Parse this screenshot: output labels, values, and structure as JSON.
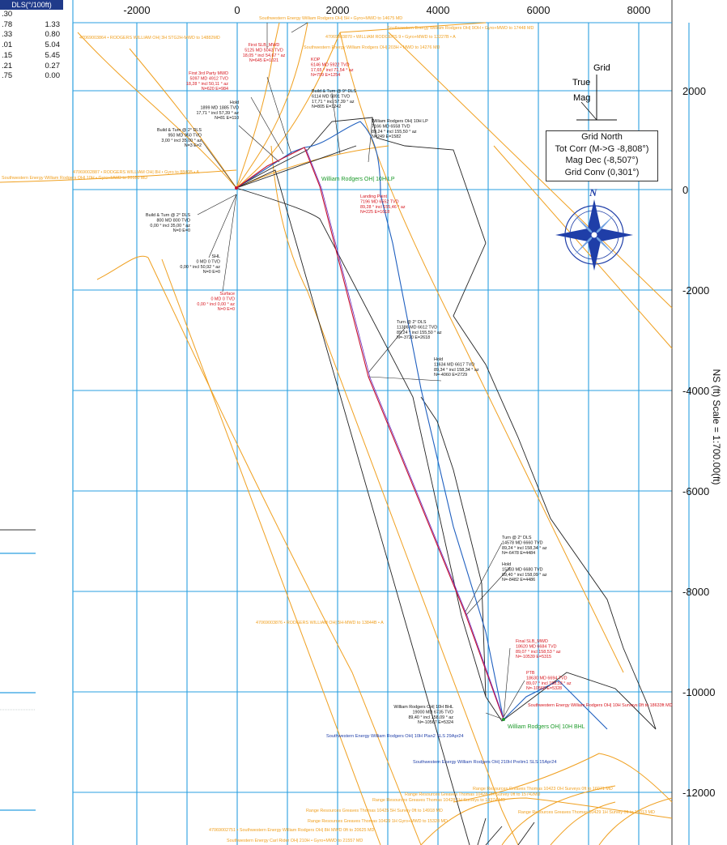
{
  "dls_table": {
    "header": "DLS(°/100ft)",
    "rows": [
      {
        "a": ".30",
        "b": ""
      },
      {
        "a": ".78",
        "b": "1.33"
      },
      {
        "a": ".33",
        "b": "0.80"
      },
      {
        "a": ".01",
        "b": "5.04"
      },
      {
        "a": ".15",
        "b": "5.45"
      },
      {
        "a": ".21",
        "b": "0.27"
      },
      {
        "a": ".75",
        "b": "0.00"
      }
    ]
  },
  "axes": {
    "x_ticks": [
      "-2000",
      "0",
      "2000",
      "4000",
      "6000",
      "8000"
    ],
    "y_ticks": [
      "2000",
      "0",
      "-2000",
      "-4000",
      "-6000",
      "-8000",
      "-10000",
      "-12000"
    ],
    "scale_label": "NS (ft) Scale = 1:700.00(ft)"
  },
  "north_diagram": {
    "grid": "Grid",
    "true": "True",
    "mag": "Mag"
  },
  "grid_north_box": {
    "title": "Grid North",
    "tot_corr": "Tot Corr (M->G -8,808°)",
    "mag_dec": "Mag Dec (-8,507°)",
    "grid_conv": "Grid Conv (0,301°)"
  },
  "compass": {
    "letter": "N",
    "color": "#1f3ea8"
  },
  "colors": {
    "grid": "#2a9fe0",
    "well_plan": "#c8102e",
    "survey_blue": "#1f5fbf",
    "offset_orange": "#f0a020",
    "offset_black": "#222222",
    "compass_blue": "#1f3ea8"
  },
  "annotations": [
    {
      "id": "first-slb",
      "lines": [
        "First SLB_MWD",
        "5125 MD 5043 TVD",
        "18,05 ° incl 54,67 ° az",
        "N=645 E=1021"
      ]
    },
    {
      "id": "kop",
      "lines": [
        "KOP",
        "6146 MD 5922 TVD",
        "17,65 ° incl 71,54 ° az",
        "N=799 E=1254"
      ]
    },
    {
      "id": "first-3rd-party",
      "lines": [
        "First 3rd Party MWD",
        "5097 MD 4912 TVD",
        "18,28 ° incl 50,11 ° az",
        "N=620 E=984"
      ]
    },
    {
      "id": "hold-1",
      "lines": [
        "Hold",
        "1899 MD 1885 TVD",
        "17,71 ° incl 57,39 ° az",
        "N=81 E=110"
      ]
    },
    {
      "id": "build-turn-9",
      "lines": [
        "Build & Turn @ 9° DLS",
        "6114 MD 5891 TVD",
        "17,71 ° incl 57,39 ° az",
        "N=805 E=1242"
      ]
    },
    {
      "id": "build-turn-2-950",
      "lines": [
        "Build & Turn @ 2° DLS",
        "950 MD 950 TVD",
        "3,00 ° incl 35,00 ° az",
        "N=3 E=2"
      ]
    },
    {
      "id": "william-lp",
      "lines": [
        "William Rodgers OH| 10H LP",
        "7166 MD 6558 TVD",
        "89,24 ° incl 155,50 ° az",
        "N=249 E=1582"
      ]
    },
    {
      "id": "landing-point",
      "lines": [
        "Landing Point",
        "7196 MD 6552 TVD",
        "89,28 ° incl 155,46 ° az",
        "N=225 E=1618"
      ]
    },
    {
      "id": "build-turn-2-800",
      "lines": [
        "Build & Turn @ 2° DLS",
        "800 MD 800 TVD",
        "0,00 ° incl 35,00 ° az",
        "N=0 E=0"
      ]
    },
    {
      "id": "shl",
      "lines": [
        "SHL",
        "0 MD 0 TVD",
        "0,00 ° incl 50,92 ° az",
        "N=0 E=0"
      ]
    },
    {
      "id": "surface",
      "lines": [
        "Surface",
        "0 MD 0 TVD",
        "0,00 ° incl 0,00 ° az",
        "N=0 E=0"
      ]
    },
    {
      "id": "turn-2-11386",
      "lines": [
        "Turn @ 2° DLS",
        "11386 MD 6612 TVD",
        "89,24 ° incl 155,50 ° az",
        "N=-3720 E=2618"
      ]
    },
    {
      "id": "hold-11634",
      "lines": [
        "Hold",
        "11634 MD 6617 TVD",
        "89,34 ° incl 158,34 ° az",
        "N=-4060 E=2729"
      ]
    },
    {
      "id": "turn-2-14578",
      "lines": [
        "Turn @ 2° DLS",
        "14578 MD 6660 TVD",
        "89,24 ° incl 158,34 ° az",
        "N=-6478 E=4484"
      ]
    },
    {
      "id": "hold-15383",
      "lines": [
        "Hold",
        "15383 MD 6680 TVD",
        "89,40 ° incl 158,09 ° az",
        "N=-8482 E=4486"
      ]
    },
    {
      "id": "final-slb",
      "lines": [
        "Final SLB_MWD",
        "18620 MD 6684 TVD",
        "89,07 ° incl 158,53 ° az",
        "N=-10539 E=5315"
      ]
    },
    {
      "id": "ptb",
      "lines": [
        "PTB",
        "18630 MD 6694 TVD",
        "89,07 ° incl 158,53 ° az",
        "N=-10568 E=5328"
      ]
    },
    {
      "id": "william-bhl",
      "lines": [
        "William Rodgers OH| 10H BHL",
        "19000 MD 6735 TVD",
        "89,40 ° incl 158,09 ° az",
        "N=-10567 E=5324"
      ]
    }
  ],
  "green_labels": {
    "lp": "William Rodgers OH| 10H LP",
    "bhl": "William Rodgers OH| 10H BHL"
  },
  "blue_labels": {
    "plan": "Southwestern Energy William Rodgers OH| 10H Plan2 SLS 29Apr24",
    "h210": "Southwestern Energy William Rodgers OH| 210H Prelim1 SLS 15Apr24"
  },
  "red_labels": {
    "surveys": "Southwestern Energy William Rodgers OH| 10H Surveys 0ft to 18633ft MD"
  },
  "orange_labels": {
    "t1": "Southwestern Energy William Rodgers OH| 5H • Gyro+MWD to 14675 MD",
    "t2": "Southwestern Energy William Rodgers OH| 9OH • Gyro+MWD to 17448 MD",
    "t3": "47069003864 • RODGERS WILLIAM OH| 3H STG2H-MWD to 14882MD",
    "t4": "47069003870 • WILLIAM RODGERS 9 • Gyro+MWD to 13227B • A",
    "t5": "Southwestern Energy William Rodgers OH| 203H • MWD to 14276 MD",
    "t6": "47069002887 • RODGERS WILLIAM OH| 8H • Gyro to 8840B • A",
    "t7": "Southwestern Energy William Rodgers OH| 10H • Gyro+MWD to 20180 MD",
    "t8": "47069003876 • RODGERS WILLIAM OH| 5H-MWD to 13844B • A",
    "r1": "Range Resources Greaves Thomas 10423 OH Surveys 0ft to 16071 MD",
    "r2": "Range Resources Greaves Thomas 10428 2H Survey 0ft to 15742MD",
    "r3": "Range Resources Greaves Thomas 10428 1H Surveys to 14374 MD",
    "r4": "Range Resources Greaves Thomas 10425 5H Survey 0ft to 14918 MD",
    "r5": "Range Resources Greaves Thomas 10429 1H Survey 0ft to 15013 MD",
    "r6": "Range Resources Greaves Thomas 10429 1H Gyro+MWD to 15328 MD",
    "r7": "47069002751 • Southwestern Energy William Rodgers OH| 8H MWD 0ft to 20625 MD",
    "r8": "Southwestern Energy Carl Rider OH| 210H • Gyro+MWD to 21557 MD"
  }
}
